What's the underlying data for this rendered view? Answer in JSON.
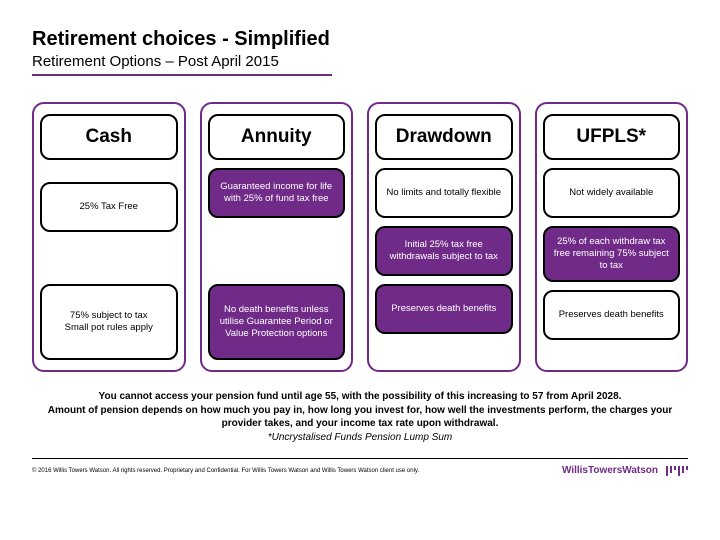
{
  "title": "Retirement choices - Simplified",
  "subtitle": "Retirement Options – Post April 2015",
  "underline_color": "#702b88",
  "columns": [
    {
      "header": "Cash",
      "cells": [
        {
          "text": "25% Tax Free",
          "style": "white",
          "tall": false
        },
        {
          "text": "75%  subject to tax\nSmall pot rules apply",
          "style": "white",
          "tall": true
        }
      ]
    },
    {
      "header": "Annuity",
      "cells": [
        {
          "text": "Guaranteed income for life with 25% of fund tax free",
          "style": "purple",
          "tall": false
        },
        {
          "text": "No death benefits unless utilise Guarantee Period or Value Protection options",
          "style": "purple",
          "tall": true
        }
      ]
    },
    {
      "header": "Drawdown",
      "cells": [
        {
          "text": "No limits and totally flexible",
          "style": "white",
          "tall": false
        },
        {
          "text": "Initial 25% tax free withdrawals subject to tax",
          "style": "purple",
          "tall": false
        },
        {
          "text": "Preserves death benefits",
          "style": "purple",
          "tall": false
        }
      ]
    },
    {
      "header": "UFPLS*",
      "cells": [
        {
          "text": "Not widely available",
          "style": "white",
          "tall": false
        },
        {
          "text": "25% of each withdraw tax free remaining 75% subject to tax",
          "style": "purple",
          "tall": false
        },
        {
          "text": "Preserves death benefits",
          "style": "white",
          "tall": false
        }
      ]
    }
  ],
  "note_line1": "You cannot access your pension fund until age 55, with the possibility of this increasing to 57 from April 2028.",
  "note_line2": "Amount of pension depends on how much you pay in, how long you invest for, how well the investments perform, the charges your provider takes, and your income tax rate upon withdrawal.",
  "note_line3": "*Uncrystalised Funds Pension Lump Sum",
  "copyright": "© 2016 Willis Towers Watson. All rights reserved. Proprietary and Confidential. For Willis Towers Watson and Willis Towers Watson client use only.",
  "brand1": "WillisTowersWatson",
  "brand2": ""
}
